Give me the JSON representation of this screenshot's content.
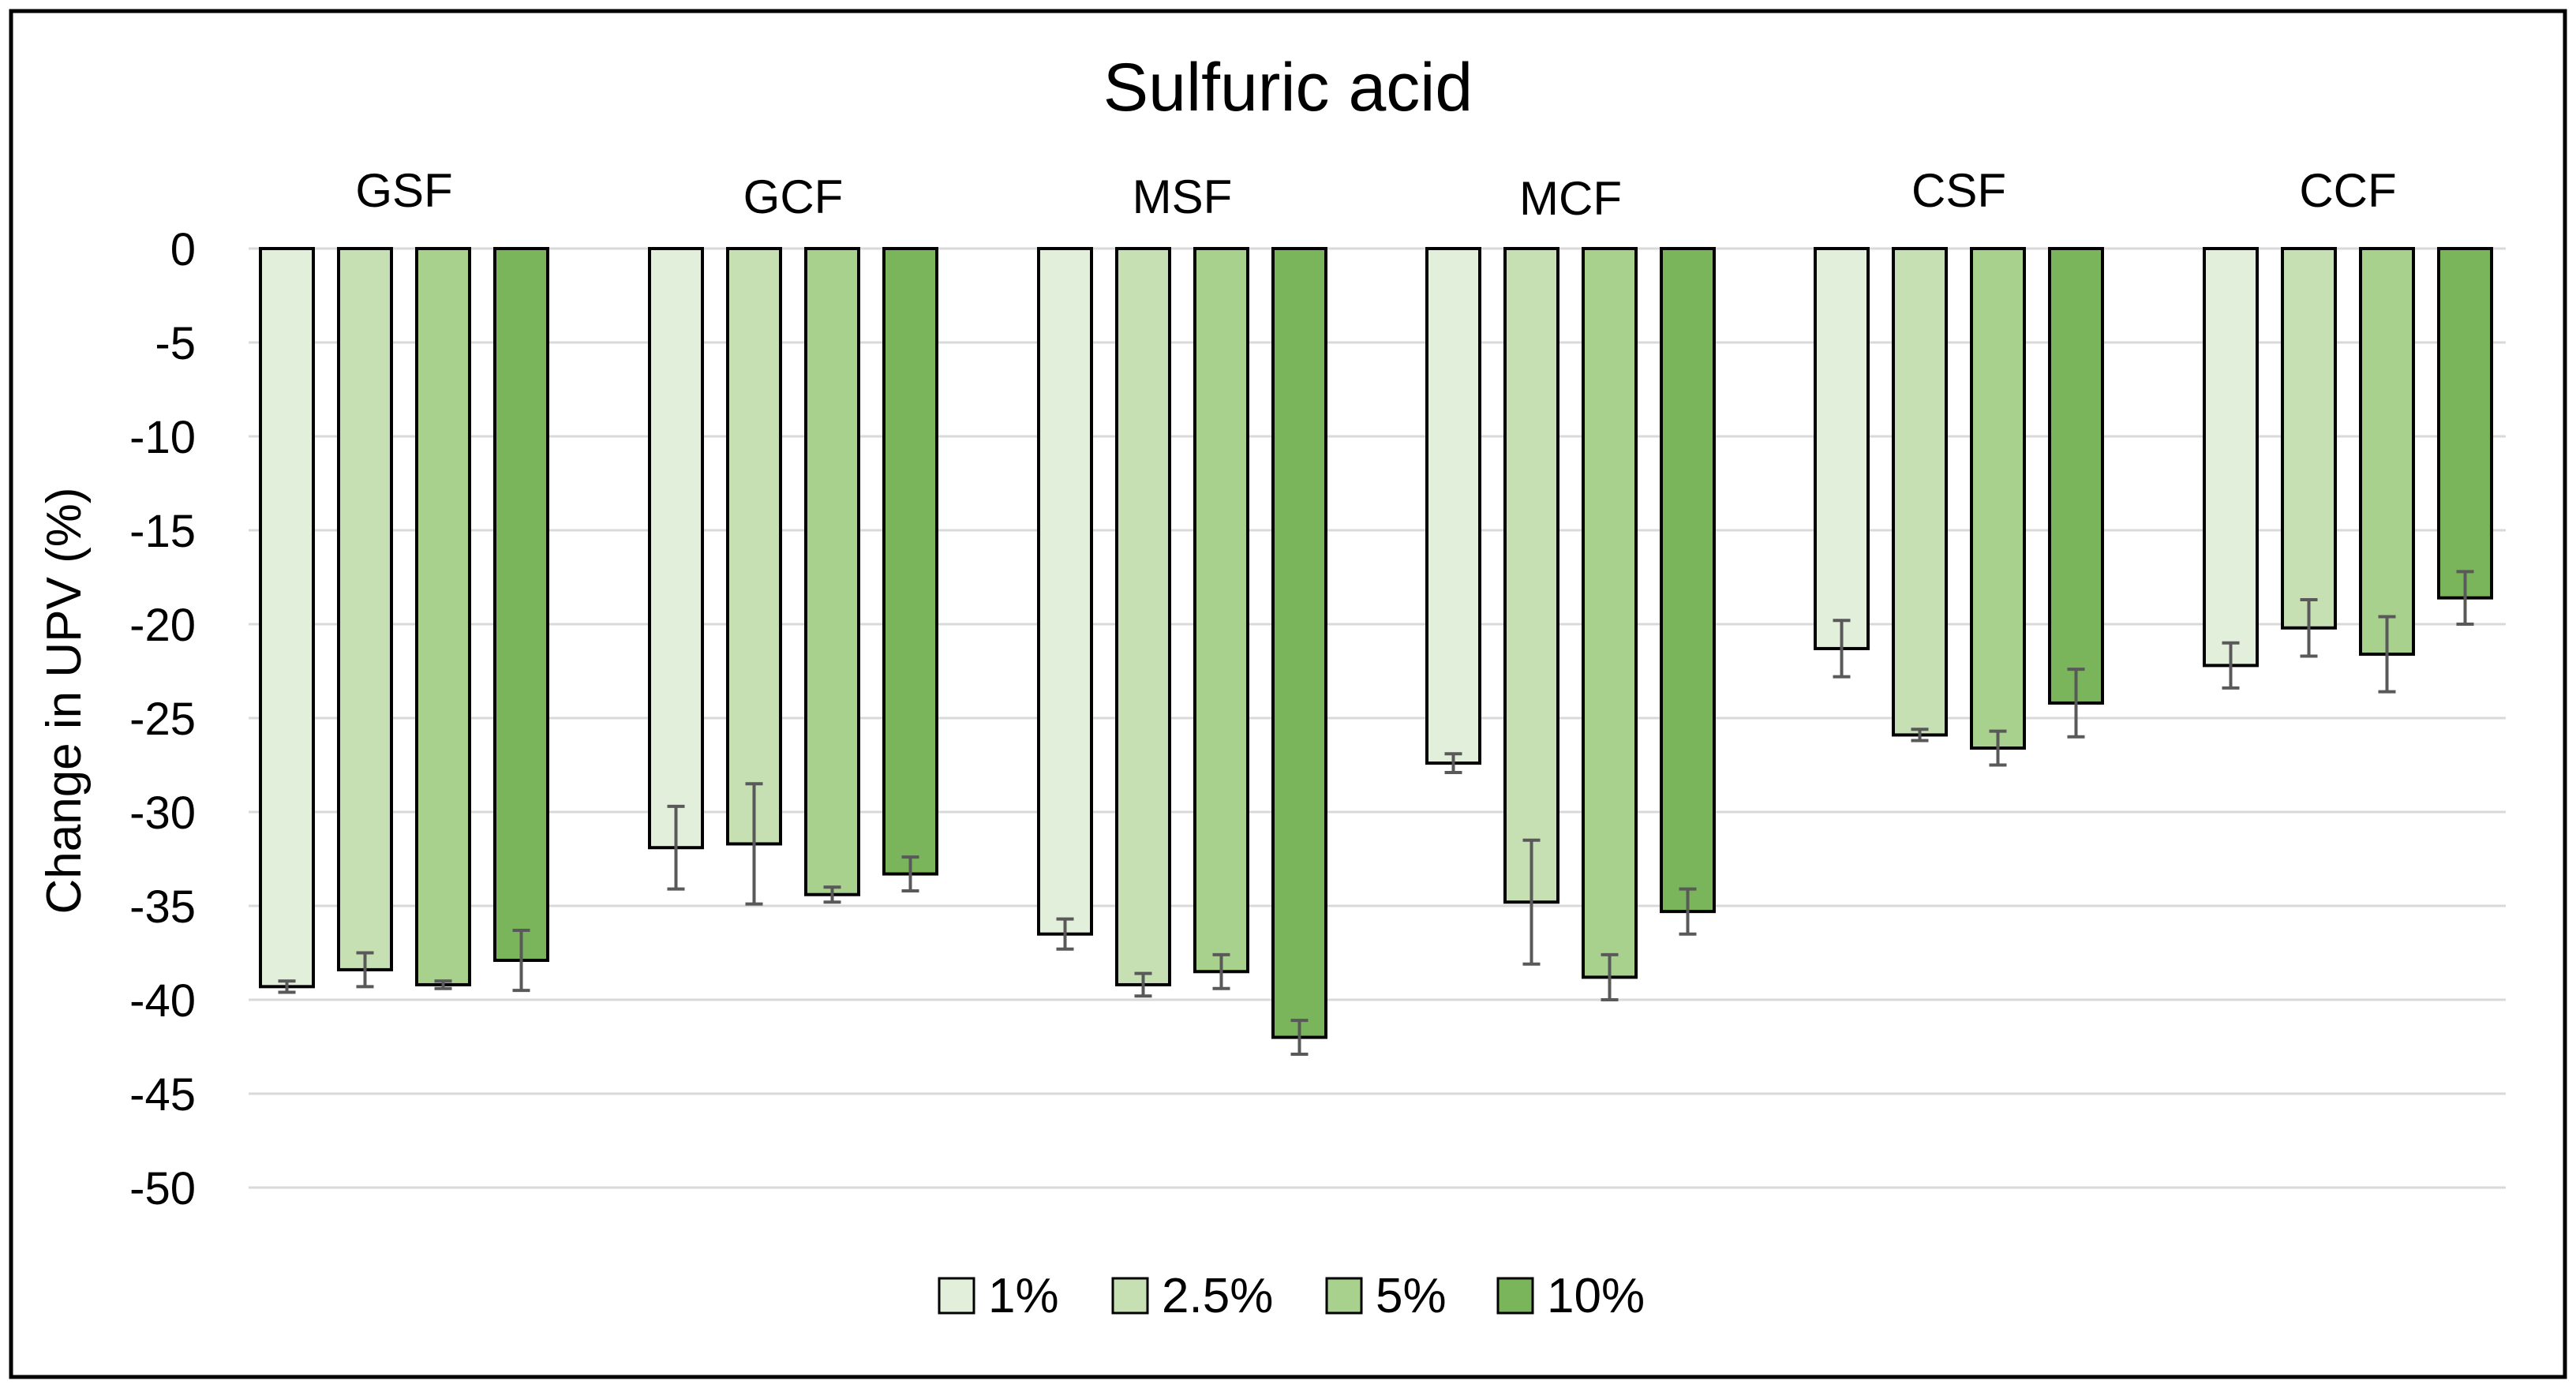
{
  "chart_data": {
    "type": "bar",
    "title": "Sulfuric acid",
    "xlabel": "",
    "ylabel": "Change in UPV (%)",
    "ylim": [
      -50,
      0
    ],
    "yticks": [
      0,
      -5,
      -10,
      -15,
      -20,
      -25,
      -30,
      -35,
      -40,
      -45,
      -50
    ],
    "grid": true,
    "legend_position": "bottom",
    "categories": [
      "GSF",
      "GCF",
      "MSF",
      "MCF",
      "CSF",
      "CCF"
    ],
    "series": [
      {
        "name": "1%",
        "color": "#e2efda",
        "values": [
          -39.3,
          -31.9,
          -36.5,
          -27.4,
          -21.3,
          -22.2
        ],
        "errors": [
          0.3,
          2.2,
          0.8,
          0.5,
          1.5,
          1.2
        ]
      },
      {
        "name": "2.5%",
        "color": "#c6e0b4",
        "values": [
          -38.4,
          -31.7,
          -39.2,
          -34.8,
          -25.9,
          -20.2
        ],
        "errors": [
          0.9,
          3.2,
          0.6,
          3.3,
          0.3,
          1.5
        ]
      },
      {
        "name": "5%",
        "color": "#a9d18e",
        "values": [
          -39.2,
          -34.4,
          -38.5,
          -38.8,
          -26.6,
          -21.6
        ],
        "errors": [
          0.2,
          0.4,
          0.9,
          1.2,
          0.9,
          2.0
        ]
      },
      {
        "name": "10%",
        "color": "#7ab55c",
        "values": [
          -37.9,
          -33.3,
          -42.0,
          -35.3,
          -24.2,
          -18.6
        ],
        "errors": [
          1.6,
          0.9,
          0.9,
          1.2,
          1.8,
          1.4
        ]
      }
    ]
  }
}
